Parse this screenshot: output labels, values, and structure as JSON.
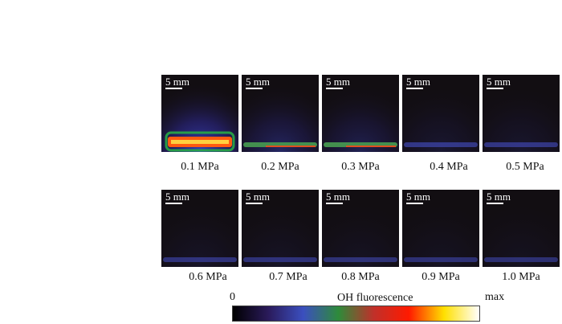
{
  "scale_bar_label": "5 mm",
  "panels": [
    {
      "pressure": "0.1 MPa",
      "intensity": 1.0
    },
    {
      "pressure": "0.2 MPa",
      "intensity": 0.5
    },
    {
      "pressure": "0.3 MPa",
      "intensity": 0.4
    },
    {
      "pressure": "0.4 MPa",
      "intensity": 0.2
    },
    {
      "pressure": "0.5 MPa",
      "intensity": 0.18
    },
    {
      "pressure": "0.6 MPa",
      "intensity": 0.14
    },
    {
      "pressure": "0.7 MPa",
      "intensity": 0.13
    },
    {
      "pressure": "0.8 MPa",
      "intensity": 0.12
    },
    {
      "pressure": "0.9 MPa",
      "intensity": 0.11
    },
    {
      "pressure": "1.0 MPa",
      "intensity": 0.1
    }
  ],
  "colorbar": {
    "min_label": "0",
    "title": "OH fluorescence",
    "max_label": "max",
    "colors": [
      "#000000",
      "#2a1a5a",
      "#3b4fbf",
      "#2e8b3a",
      "#c0302a",
      "#ff1a00",
      "#ffe000",
      "#ffffff"
    ]
  }
}
